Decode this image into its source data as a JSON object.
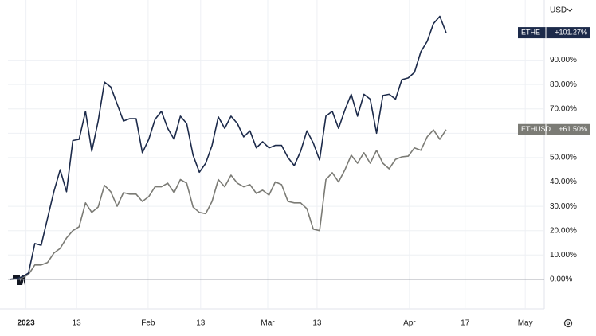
{
  "chart_data": {
    "type": "line",
    "currency": "USD",
    "x": [
      0,
      1,
      2,
      3,
      4,
      5,
      6,
      7,
      8,
      9,
      10,
      11,
      12,
      13,
      14,
      15,
      16,
      17,
      18,
      19,
      20,
      21,
      22,
      23,
      24,
      25,
      26,
      27,
      28,
      29,
      30,
      31,
      32,
      33,
      34,
      35,
      36,
      37,
      38,
      39,
      40,
      41,
      42,
      43,
      44,
      45,
      46,
      47,
      48,
      49,
      50,
      51,
      52,
      53,
      54,
      55,
      56,
      57,
      58,
      59,
      60,
      61,
      62,
      63,
      64,
      65,
      66,
      67,
      68,
      69
    ],
    "xlim": [
      -0.25,
      84.5
    ],
    "xticks": [
      {
        "value": 2.6,
        "label": "2023"
      },
      {
        "value": 10.6,
        "label": "13"
      },
      {
        "value": 21.9,
        "label": "Feb"
      },
      {
        "value": 30.2,
        "label": "13"
      },
      {
        "value": 40.8,
        "label": "Mar"
      },
      {
        "value": 48.6,
        "label": "13"
      },
      {
        "value": 63.2,
        "label": "Apr"
      },
      {
        "value": 72,
        "label": "17"
      },
      {
        "value": 81.5,
        "label": "May"
      }
    ],
    "ylim": [
      -6.9,
      114.7
    ],
    "yticks": [
      {
        "value": 0,
        "label": "0.00%"
      },
      {
        "value": 10,
        "label": "10.00%"
      },
      {
        "value": 20,
        "label": "20.00%"
      },
      {
        "value": 30,
        "label": "30.00%"
      },
      {
        "value": 40,
        "label": "40.00%"
      },
      {
        "value": 50,
        "label": "50.00%"
      },
      {
        "value": 60,
        "label": "60.00%"
      },
      {
        "value": 70,
        "label": "70.00%"
      },
      {
        "value": 80,
        "label": "80.00%"
      },
      {
        "value": 90,
        "label": "90.00%"
      }
    ],
    "grid": true,
    "series": [
      {
        "name": "ETHE",
        "color": "#1c2a4a",
        "end_label": "+101.27%",
        "values": [
          0,
          0.3,
          1,
          2.6,
          14.7,
          14,
          25,
          36,
          45,
          36,
          57,
          57.5,
          69,
          52.6,
          65,
          81,
          79,
          72,
          65,
          66,
          66,
          52,
          57.5,
          65.7,
          69,
          62,
          57.5,
          67,
          64,
          51,
          44,
          47.7,
          55,
          66.7,
          62,
          67,
          64,
          58.5,
          61,
          54,
          56.5,
          54,
          55,
          55,
          50,
          46.7,
          52.6,
          61,
          56,
          49,
          67,
          69,
          62,
          69.6,
          76,
          67,
          76,
          74,
          60,
          75.5,
          76,
          74,
          82,
          82.7,
          85,
          93.5,
          97.7,
          105,
          108,
          101.27
        ]
      },
      {
        "name": "ETHUSD",
        "color": "#7b7b75",
        "end_label": "+61.50%",
        "values": [
          0,
          0.3,
          0.7,
          2,
          5.9,
          5.9,
          6.9,
          10.8,
          12.7,
          17,
          20,
          21.6,
          31.4,
          27.5,
          29.7,
          38.6,
          36,
          30,
          35.6,
          35,
          35,
          32,
          34,
          38,
          38,
          39.5,
          35.6,
          41,
          39.5,
          29.7,
          27.5,
          27,
          32,
          41,
          38,
          42.8,
          39.5,
          38,
          38.9,
          35.3,
          36.6,
          34.6,
          40,
          38.9,
          32,
          31.4,
          31.4,
          29,
          20.6,
          20,
          41,
          43.8,
          40,
          45,
          51,
          47.7,
          52,
          47.7,
          53,
          47.7,
          45.4,
          49.3,
          50.3,
          50.6,
          54,
          53,
          58.5,
          61.4,
          57.5,
          61.5
        ]
      }
    ]
  }
}
